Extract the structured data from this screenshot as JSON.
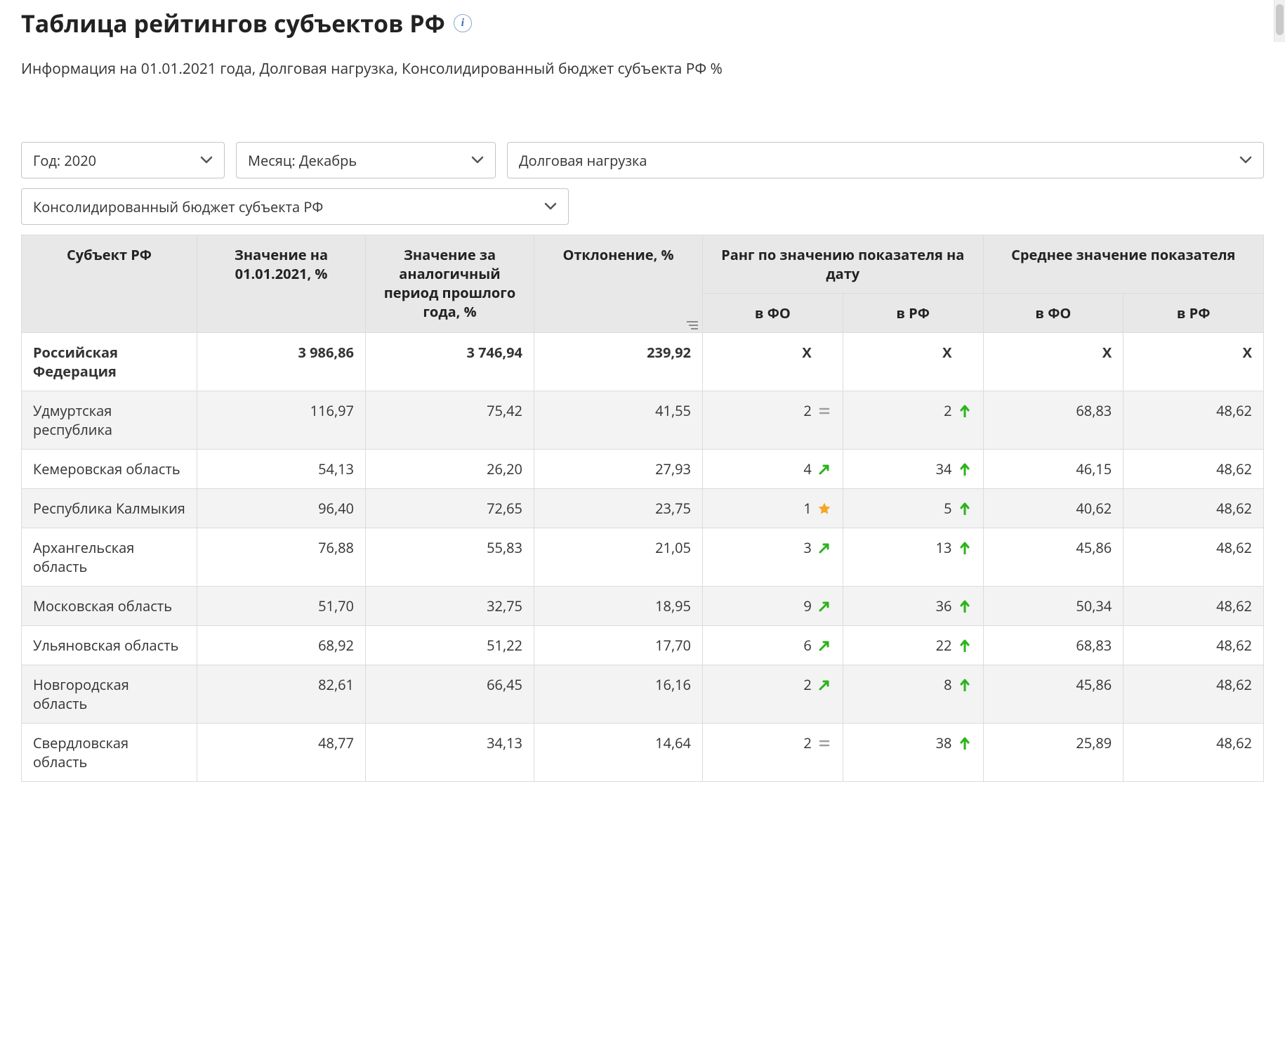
{
  "header": {
    "title": "Таблица рейтингов субъектов РФ",
    "info_icon_label": "i",
    "subtitle": "Информация на 01.01.2021 года, Долговая нагрузка, Консолидированный бюджет субъекта РФ %"
  },
  "filters": {
    "year": {
      "label": "Год: 2020"
    },
    "month": {
      "label": "Месяц: Декабрь"
    },
    "metric": {
      "label": "Долговая нагрузка"
    },
    "budget": {
      "label": "Консолидированный бюджет субъекта РФ"
    }
  },
  "table": {
    "columns": {
      "subject": "Субъект РФ",
      "value_on_date": "Значение на 01.01.2021, %",
      "value_prev": "Значение за аналогичный период прошлого года, %",
      "deviation": "Отклонение, %",
      "rank_group": "Ранг по значению показателя на дату",
      "rank_fo": "в ФО",
      "rank_rf": "в РФ",
      "avg_group": "Среднее значение показателя",
      "avg_fo": "в ФО",
      "avg_rf": "в РФ"
    },
    "total_row": {
      "subject": "Российская Федерация",
      "value_on_date": "3 986,86",
      "value_prev": "3 746,94",
      "deviation": "239,92",
      "rank_fo": "X",
      "rank_rf": "X",
      "avg_fo": "X",
      "avg_rf": "X"
    },
    "rows": [
      {
        "subject": "Удмуртская республика",
        "value_on_date": "116,97",
        "value_prev": "75,42",
        "deviation": "41,55",
        "rank_fo": "2",
        "rank_fo_trend": "eq",
        "rank_rf": "2",
        "rank_rf_trend": "up",
        "avg_fo": "68,83",
        "avg_rf": "48,62"
      },
      {
        "subject": "Кемеровская область",
        "value_on_date": "54,13",
        "value_prev": "26,20",
        "deviation": "27,93",
        "rank_fo": "4",
        "rank_fo_trend": "up-diag",
        "rank_rf": "34",
        "rank_rf_trend": "up",
        "avg_fo": "46,15",
        "avg_rf": "48,62"
      },
      {
        "subject": "Республика Калмыкия",
        "value_on_date": "96,40",
        "value_prev": "72,65",
        "deviation": "23,75",
        "rank_fo": "1",
        "rank_fo_trend": "star",
        "rank_rf": "5",
        "rank_rf_trend": "up",
        "avg_fo": "40,62",
        "avg_rf": "48,62"
      },
      {
        "subject": "Архангельская область",
        "value_on_date": "76,88",
        "value_prev": "55,83",
        "deviation": "21,05",
        "rank_fo": "3",
        "rank_fo_trend": "up-diag",
        "rank_rf": "13",
        "rank_rf_trend": "up",
        "avg_fo": "45,86",
        "avg_rf": "48,62"
      },
      {
        "subject": "Московская область",
        "value_on_date": "51,70",
        "value_prev": "32,75",
        "deviation": "18,95",
        "rank_fo": "9",
        "rank_fo_trend": "up-diag",
        "rank_rf": "36",
        "rank_rf_trend": "up",
        "avg_fo": "50,34",
        "avg_rf": "48,62"
      },
      {
        "subject": "Ульяновская область",
        "value_on_date": "68,92",
        "value_prev": "51,22",
        "deviation": "17,70",
        "rank_fo": "6",
        "rank_fo_trend": "up-diag",
        "rank_rf": "22",
        "rank_rf_trend": "up",
        "avg_fo": "68,83",
        "avg_rf": "48,62"
      },
      {
        "subject": "Новгородская область",
        "value_on_date": "82,61",
        "value_prev": "66,45",
        "deviation": "16,16",
        "rank_fo": "2",
        "rank_fo_trend": "up-diag",
        "rank_rf": "8",
        "rank_rf_trend": "up",
        "avg_fo": "45,86",
        "avg_rf": "48,62"
      },
      {
        "subject": "Свердловская область",
        "value_on_date": "48,77",
        "value_prev": "34,13",
        "deviation": "14,64",
        "rank_fo": "2",
        "rank_fo_trend": "eq",
        "rank_rf": "38",
        "rank_rf_trend": "up",
        "avg_fo": "25,89",
        "avg_rf": "48,62"
      }
    ]
  },
  "icons": {
    "colors": {
      "up": "#2bb31a",
      "eq": "#9e9e9e",
      "star": "#f5a623",
      "chev": "#555555"
    }
  }
}
